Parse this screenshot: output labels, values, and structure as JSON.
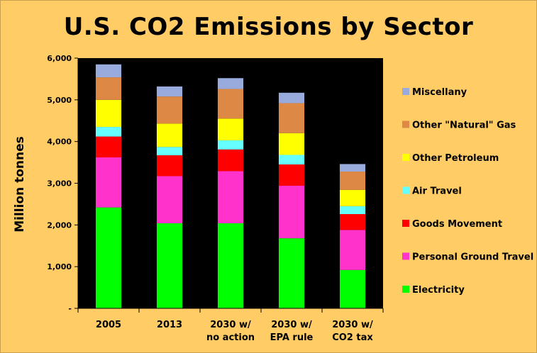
{
  "chart_data": {
    "type": "bar",
    "stacked": true,
    "title": "U.S. CO2 Emissions by Sector",
    "xlabel": "",
    "ylabel": "Million tonnes",
    "ylim": [
      0,
      6000
    ],
    "yticks": [
      0,
      1000,
      2000,
      3000,
      4000,
      5000,
      6000
    ],
    "ytick_labels": [
      "-",
      "1,000",
      "2,000",
      "3,000",
      "4,000",
      "5,000",
      "6,000"
    ],
    "grid": false,
    "legend_position": "right",
    "categories": [
      [
        "2005"
      ],
      [
        "2013"
      ],
      [
        "2030 w/",
        "no action"
      ],
      [
        "2030 w/",
        "EPA rule"
      ],
      [
        "2030 w/",
        "CO2 tax"
      ]
    ],
    "series": [
      {
        "name": "Electricity",
        "color": "#00FF00",
        "values": [
          2420,
          2040,
          2040,
          1680,
          920
        ]
      },
      {
        "name": "Personal Ground Travel",
        "color": "#FF33CC",
        "values": [
          1200,
          1130,
          1250,
          1260,
          960
        ]
      },
      {
        "name": "Goods Movement",
        "color": "#FF0000",
        "values": [
          500,
          500,
          520,
          510,
          380
        ]
      },
      {
        "name": "Air Travel",
        "color": "#66FFFF",
        "values": [
          230,
          200,
          220,
          230,
          190
        ]
      },
      {
        "name": "Other Petroleum",
        "color": "#FFFF00",
        "values": [
          650,
          560,
          520,
          520,
          390
        ]
      },
      {
        "name": "Other \"Natural\" Gas",
        "color": "#DD8844",
        "values": [
          540,
          650,
          710,
          720,
          440
        ]
      },
      {
        "name": "Miscellany",
        "color": "#99AADD",
        "values": [
          310,
          240,
          260,
          250,
          180
        ]
      }
    ]
  }
}
